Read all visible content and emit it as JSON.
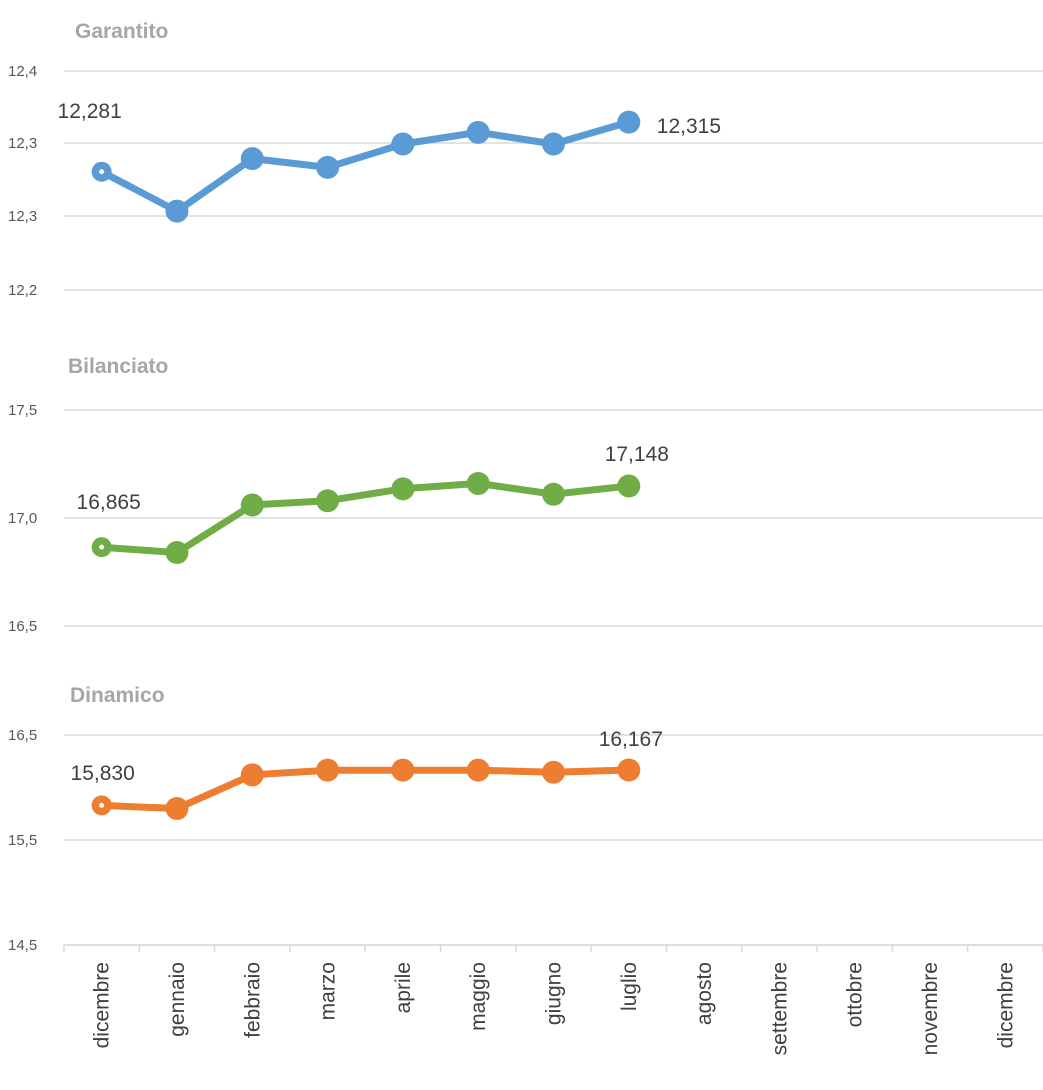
{
  "chart_data": {
    "type": "line",
    "categories": [
      "dicembre",
      "gennaio",
      "febbraio",
      "marzo",
      "aprile",
      "maggio",
      "giugno",
      "luglio",
      "agosto",
      "settembre",
      "ottobre",
      "novembre",
      "dicembre"
    ],
    "panels": [
      {
        "title": "Garantito",
        "color": "#5b9bd5",
        "y_ticks": [
          "12,4",
          "12,3",
          "12,3",
          "12,2"
        ],
        "ylim": [
          12.2,
          12.35
        ],
        "series": [
          {
            "values": [
              12.281,
              12.254,
              12.29,
              12.284,
              12.3,
              12.308,
              12.3,
              12.315
            ]
          }
        ],
        "data_labels": [
          {
            "index": 0,
            "text": "12,281"
          },
          {
            "index": 7,
            "text": "12,315"
          }
        ]
      },
      {
        "title": "Bilanciato",
        "color": "#70ad47",
        "y_ticks": [
          "17,5",
          "17,0",
          "16,5"
        ],
        "ylim": [
          16.5,
          17.5
        ],
        "series": [
          {
            "values": [
              16.865,
              16.84,
              17.06,
              17.08,
              17.135,
              17.16,
              17.11,
              17.148
            ]
          }
        ],
        "data_labels": [
          {
            "index": 0,
            "text": "16,865"
          },
          {
            "index": 7,
            "text": "17,148"
          }
        ]
      },
      {
        "title": "Dinamico",
        "color": "#ed7d31",
        "y_ticks": [
          "16,5",
          "15,5",
          "14,5"
        ],
        "ylim": [
          14.5,
          16.5
        ],
        "series": [
          {
            "values": [
              15.83,
              15.8,
              16.12,
              16.165,
              16.165,
              16.165,
              16.145,
              16.167
            ]
          }
        ],
        "data_labels": [
          {
            "index": 0,
            "text": "15,830"
          },
          {
            "index": 7,
            "text": "16,167"
          }
        ]
      }
    ],
    "grid": true,
    "legend": "none"
  }
}
